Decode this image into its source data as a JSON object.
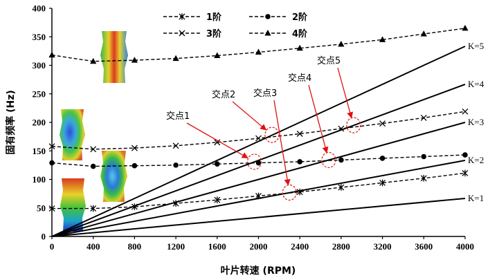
{
  "chart_data": {
    "type": "line",
    "xlabel": "叶片转速 (RPM)",
    "ylabel": "固有频率 (Hz)",
    "xlim": [
      0,
      4000
    ],
    "ylim": [
      0,
      400
    ],
    "xticks": [
      0,
      400,
      800,
      1200,
      1600,
      2000,
      2400,
      2800,
      3200,
      3600,
      4000
    ],
    "yticks": [
      0,
      50,
      100,
      150,
      200,
      250,
      300,
      350,
      400
    ],
    "legend_position": "top-center",
    "grid": false,
    "x": [
      0,
      400,
      800,
      1200,
      1600,
      2000,
      2400,
      2800,
      3200,
      3600,
      4000
    ],
    "series": [
      {
        "name": "1阶",
        "marker": "asterisk",
        "style": "dashed",
        "values": [
          49,
          49,
          52,
          58,
          64,
          71,
          78,
          86,
          94,
          102,
          111
        ]
      },
      {
        "name": "2阶",
        "marker": "circle",
        "style": "dashed",
        "values": [
          129,
          123,
          124,
          125,
          127,
          129,
          131,
          134,
          137,
          140,
          143
        ]
      },
      {
        "name": "3阶",
        "marker": "x",
        "style": "dashed",
        "values": [
          158,
          153,
          155,
          159,
          165,
          172,
          180,
          189,
          198,
          208,
          219
        ]
      },
      {
        "name": "4阶",
        "marker": "triangle",
        "style": "dashed",
        "values": [
          318,
          307,
          309,
          312,
          317,
          323,
          330,
          337,
          345,
          355,
          365
        ]
      }
    ],
    "k_lines": [
      {
        "label": "K=1",
        "k": 1
      },
      {
        "label": "K=2",
        "k": 2
      },
      {
        "label": "K=3",
        "k": 3
      },
      {
        "label": "K=4",
        "k": 4
      },
      {
        "label": "K=5",
        "k": 5
      }
    ],
    "annotations": [
      {
        "label": "交点1",
        "point": [
          1960,
          131
        ]
      },
      {
        "label": "交点2",
        "point": [
          2130,
          178
        ]
      },
      {
        "label": "交点3",
        "point": [
          2300,
          77
        ]
      },
      {
        "label": "交点4",
        "point": [
          2680,
          134
        ]
      },
      {
        "label": "交点5",
        "point": [
          2920,
          195
        ]
      }
    ]
  }
}
